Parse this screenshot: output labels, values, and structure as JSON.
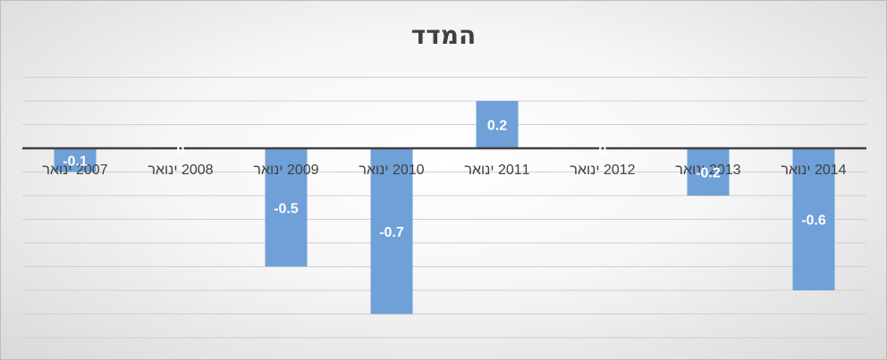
{
  "chart_data": {
    "type": "bar",
    "title": "המדד",
    "categories": [
      "2007 ינואר",
      "2008 ינואר",
      "2009 ינואר",
      "2010 ינואר",
      "2011 ינואר",
      "2012 ינואר",
      "2013 ינואר",
      "2014 ינואר"
    ],
    "values": [
      -0.1,
      0,
      -0.5,
      -0.7,
      0.2,
      0,
      -0.2,
      -0.6
    ],
    "data_labels": [
      "-0.1",
      "0",
      "-0.5",
      "-0.7",
      "0.2",
      "0",
      "-0.2",
      "-0.6"
    ],
    "xlabel": "",
    "ylabel": "",
    "ylim": [
      -0.8,
      0.3
    ],
    "grid": true,
    "legend": "none",
    "colors": {
      "bar": "#6fa0d8",
      "bar_label": "#ffffff",
      "zero_label": "#ffffff",
      "axis": "#404040",
      "grid": "#cfcfcf",
      "category_text": "#404040"
    }
  }
}
